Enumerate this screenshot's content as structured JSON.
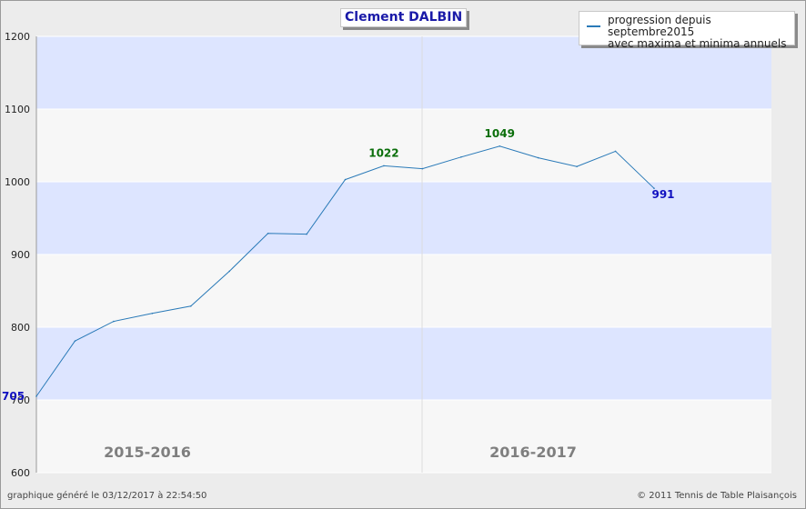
{
  "chart_data": {
    "type": "line",
    "title": "Clement DALBIN",
    "legend": {
      "placement": "top-right",
      "line1": "progression depuis septembre2015",
      "line2": "avec maxima et minima annuels"
    },
    "ylim": [
      600,
      1200
    ],
    "yticks": [
      "600",
      "700",
      "800",
      "900",
      "1000",
      "1100",
      "1200"
    ],
    "ytick_values": [
      600,
      700,
      800,
      900,
      1000,
      1100,
      1200
    ],
    "seasons": [
      "2015-2016",
      "2016-2017"
    ],
    "series": [
      {
        "values": [
          705,
          781,
          808,
          819,
          829,
          877,
          929,
          928,
          1003,
          1022,
          1018,
          1034,
          1049,
          1033,
          1021,
          1042,
          991
        ]
      }
    ],
    "annotations": [
      {
        "index": 0,
        "text": "705",
        "kind": "min",
        "color": "#1010c0"
      },
      {
        "index": 9,
        "text": "1022",
        "kind": "max",
        "color": "#0a6e0a"
      },
      {
        "index": 12,
        "text": "1049",
        "kind": "max",
        "color": "#0a6e0a"
      },
      {
        "index": 16,
        "text": "991",
        "kind": "min",
        "color": "#1010c0"
      }
    ],
    "grid": true,
    "band_colors": [
      "#dde5ff",
      "#f7f7f7"
    ],
    "line_color": "#2a7ab8"
  },
  "footer": {
    "left": "graphique généré le 03/12/2017 à 22:54:50",
    "right": "© 2011 Tennis de Table Plaisançois"
  }
}
